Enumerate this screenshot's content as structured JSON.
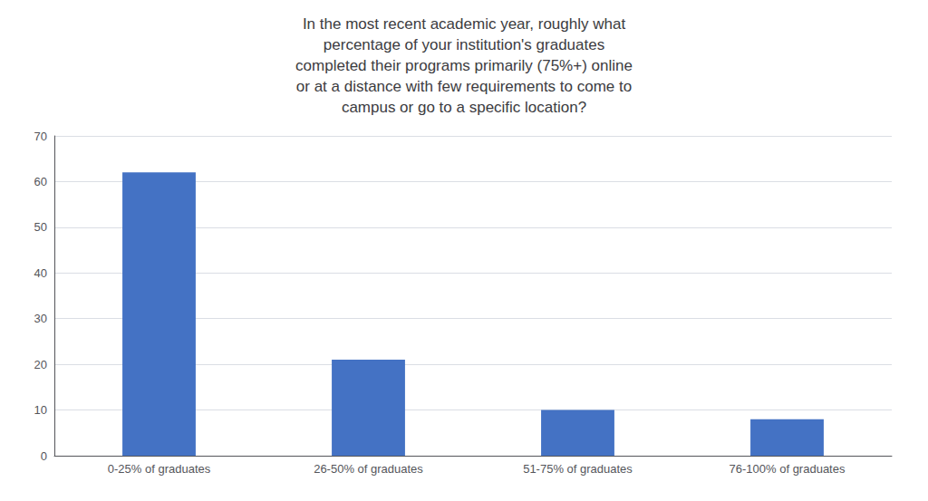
{
  "chart_data": {
    "type": "bar",
    "title": "In the most recent academic year, roughly what\npercentage of your institution's graduates\ncompleted their programs primarily (75%+) online\nor at a distance with few requirements to come to\ncampus or go to a specific location?",
    "categories": [
      "0-25% of graduates",
      "26-50% of graduates",
      "51-75% of graduates",
      "76-100% of graduates"
    ],
    "values": [
      62,
      21,
      10,
      8
    ],
    "color": "#4472C4",
    "ylim": [
      0,
      70
    ],
    "yticks": [
      0,
      10,
      20,
      30,
      40,
      50,
      60,
      70
    ],
    "grid": true
  }
}
